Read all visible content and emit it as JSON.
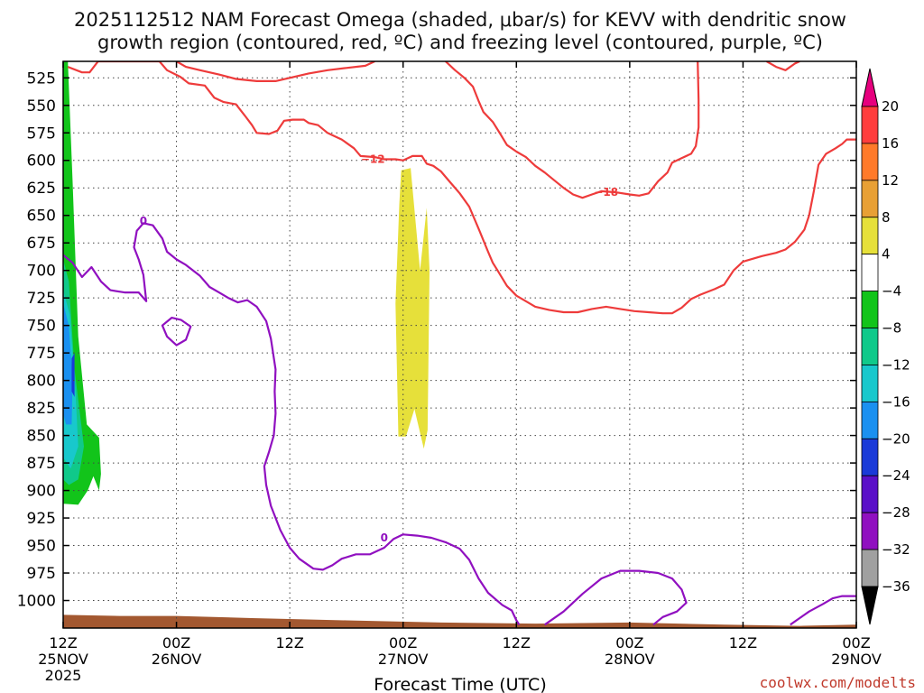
{
  "chart_data": {
    "type": "contour",
    "title_line1": "2025112512 NAM Forecast Omega (shaded, μbar/s) for KEVV with dendritic snow",
    "title_line2": "growth region (contoured, red, ºC) and freezing level (contoured, purple, ºC)",
    "xlabel": "Forecast Time (UTC)",
    "credit": "coolwx.com/modelts",
    "x_range_hours": [
      0,
      84
    ],
    "x_ticks": [
      {
        "hour": 0,
        "label": "12Z",
        "date": "25NOV",
        "year": "2025"
      },
      {
        "hour": 12,
        "label": "00Z",
        "date": "26NOV",
        "year": ""
      },
      {
        "hour": 24,
        "label": "12Z",
        "date": "",
        "year": ""
      },
      {
        "hour": 36,
        "label": "00Z",
        "date": "27NOV",
        "year": ""
      },
      {
        "hour": 48,
        "label": "12Z",
        "date": "",
        "year": ""
      },
      {
        "hour": 60,
        "label": "00Z",
        "date": "28NOV",
        "year": ""
      },
      {
        "hour": 72,
        "label": "12Z",
        "date": "",
        "year": ""
      },
      {
        "hour": 84,
        "label": "00Z",
        "date": "29NOV",
        "year": ""
      }
    ],
    "y_range_hpa": [
      1025,
      510
    ],
    "y_ticks": [
      525,
      550,
      575,
      600,
      625,
      650,
      675,
      700,
      725,
      750,
      775,
      800,
      825,
      850,
      875,
      900,
      925,
      950,
      975,
      1000
    ],
    "colorbar": {
      "labels": [
        "20",
        "16",
        "12",
        "8",
        "4",
        "−4",
        "−8",
        "−12",
        "−16",
        "−20",
        "−24",
        "−28",
        "−32",
        "−36"
      ],
      "colors": [
        "#ff3d3d",
        "#ff7a2a",
        "#e8a035",
        "#e6e03a",
        "#ffffff",
        "#12c41a",
        "#10c98a",
        "#18c8cc",
        "#1a90f0",
        "#1a3ad8",
        "#5a10c8",
        "#9010c0",
        "#a0a0a0"
      ],
      "top_cap_color": "#e6007e",
      "bottom_cap_color": "#000000"
    },
    "omega_regions": [
      {
        "name": "yellow-upward-band",
        "value_range": "4 to 8",
        "color": "#e6e03a",
        "points": [
          [
            35.8,
            609
          ],
          [
            36.8,
            607
          ],
          [
            37.8,
            700
          ],
          [
            38.5,
            643
          ],
          [
            38.8,
            700
          ],
          [
            38.6,
            845
          ],
          [
            38.2,
            862
          ],
          [
            37.2,
            826
          ],
          [
            36.3,
            851
          ],
          [
            35.5,
            851
          ],
          [
            35.2,
            730
          ],
          [
            35.6,
            640
          ]
        ]
      },
      {
        "name": "green-lowlevel-region",
        "value_range": "-4 to -8",
        "color": "#12c41a",
        "points": [
          [
            0,
            510
          ],
          [
            0.5,
            510
          ],
          [
            1.0,
            620
          ],
          [
            1.6,
            760
          ],
          [
            2.5,
            840
          ],
          [
            3.8,
            852
          ],
          [
            4.0,
            885
          ],
          [
            3.8,
            900
          ],
          [
            3.2,
            887
          ],
          [
            2.6,
            900
          ],
          [
            1.6,
            913
          ],
          [
            0,
            912
          ]
        ]
      },
      {
        "name": "teal-core",
        "value_range": "-8 to -12",
        "color": "#10c98a",
        "points": [
          [
            0,
            690
          ],
          [
            0.6,
            710
          ],
          [
            1.2,
            790
          ],
          [
            2.2,
            860
          ],
          [
            1.6,
            890
          ],
          [
            0.6,
            895
          ],
          [
            0,
            890
          ]
        ]
      },
      {
        "name": "cyan-core",
        "value_range": "-12 to -16",
        "color": "#18c8cc",
        "points": [
          [
            0,
            718
          ],
          [
            0.7,
            740
          ],
          [
            1.3,
            810
          ],
          [
            1.6,
            860
          ],
          [
            0.8,
            880
          ],
          [
            0,
            870
          ]
        ]
      },
      {
        "name": "blue-core",
        "value_range": "-16 to -20",
        "color": "#1a90f0",
        "points": [
          [
            0,
            730
          ],
          [
            0.6,
            750
          ],
          [
            1.0,
            800
          ],
          [
            0.9,
            840
          ],
          [
            0.3,
            840
          ],
          [
            0,
            830
          ]
        ]
      },
      {
        "name": "deep-blue-core",
        "value_range": "-20 to -24",
        "color": "#1a3ad8",
        "points": [
          [
            0.9,
            780
          ],
          [
            1.2,
            775
          ],
          [
            1.2,
            815
          ],
          [
            0.9,
            810
          ]
        ]
      }
    ],
    "terrain": {
      "color": "#a35830",
      "top_hpa": [
        [
          0,
          1013
        ],
        [
          6,
          1014
        ],
        [
          12,
          1014
        ],
        [
          20,
          1016
        ],
        [
          30,
          1018
        ],
        [
          40,
          1020
        ],
        [
          50,
          1021
        ],
        [
          60,
          1020
        ],
        [
          70,
          1022
        ],
        [
          78,
          1023
        ],
        [
          84,
          1022
        ]
      ]
    },
    "contour_minus12": {
      "value": "-12",
      "color": "#ee3b3b",
      "label": "−12",
      "label_at": [
        32.8,
        599
      ],
      "points": [
        [
          0.5,
          515
        ],
        [
          2.0,
          520
        ],
        [
          2.8,
          520
        ],
        [
          3.7,
          510
        ],
        [
          10.2,
          510
        ],
        [
          11.0,
          518
        ],
        [
          12.4,
          524
        ],
        [
          13.3,
          530
        ],
        [
          15.0,
          532
        ],
        [
          16.0,
          543
        ],
        [
          17.0,
          547
        ],
        [
          18.3,
          549
        ],
        [
          19.3,
          560
        ],
        [
          20.0,
          568
        ],
        [
          20.5,
          575
        ],
        [
          21.8,
          576
        ],
        [
          22.7,
          573
        ],
        [
          23.4,
          564
        ],
        [
          24.3,
          563
        ],
        [
          25.5,
          563
        ],
        [
          26.0,
          566
        ],
        [
          27.0,
          568
        ],
        [
          28.0,
          575
        ],
        [
          28.5,
          577
        ],
        [
          29.5,
          581
        ],
        [
          30.8,
          589
        ],
        [
          31.5,
          596
        ],
        [
          33.0,
          597
        ],
        [
          34.0,
          599
        ],
        [
          35.2,
          599
        ],
        [
          36.0,
          600
        ],
        [
          37.0,
          596
        ],
        [
          38.0,
          596
        ],
        [
          38.5,
          603
        ],
        [
          39.2,
          605
        ],
        [
          40.0,
          610
        ],
        [
          41.0,
          620
        ],
        [
          42.0,
          630
        ],
        [
          43.0,
          642
        ],
        [
          44.0,
          662
        ],
        [
          45.0,
          683
        ],
        [
          45.5,
          693
        ],
        [
          46.0,
          700
        ],
        [
          47.0,
          714
        ],
        [
          48.0,
          723
        ],
        [
          49.0,
          728
        ],
        [
          50.0,
          733
        ],
        [
          51.5,
          736
        ],
        [
          53.0,
          738
        ],
        [
          54.5,
          738
        ],
        [
          56.0,
          735
        ],
        [
          57.5,
          733
        ],
        [
          59.0,
          735
        ],
        [
          60.5,
          737
        ],
        [
          62.0,
          738
        ],
        [
          63.5,
          739
        ],
        [
          64.5,
          739
        ],
        [
          65.5,
          734
        ],
        [
          66.5,
          726
        ],
        [
          67.5,
          722
        ],
        [
          69.0,
          717
        ],
        [
          70.0,
          713
        ],
        [
          71.0,
          700
        ],
        [
          72.0,
          692
        ],
        [
          74.0,
          687
        ],
        [
          75.5,
          684
        ],
        [
          76.5,
          681
        ],
        [
          77.5,
          674
        ],
        [
          78.5,
          663
        ],
        [
          79.0,
          650
        ],
        [
          79.5,
          628
        ],
        [
          80.0,
          604
        ],
        [
          80.8,
          594
        ],
        [
          81.8,
          589
        ],
        [
          82.5,
          585
        ],
        [
          83.0,
          581
        ],
        [
          84.0,
          581
        ]
      ]
    },
    "contour_minus18": {
      "value": "-18",
      "color": "#ee3b3b",
      "label": "−18",
      "label_at": [
        57.5,
        629
      ],
      "points": [
        [
          12.0,
          510
        ],
        [
          13.0,
          515
        ],
        [
          14.5,
          518
        ],
        [
          16.5,
          522
        ],
        [
          18.3,
          526
        ],
        [
          20.5,
          528
        ],
        [
          22.5,
          528
        ],
        [
          24.0,
          525
        ],
        [
          26.0,
          521
        ],
        [
          28.0,
          518
        ],
        [
          30.0,
          516
        ],
        [
          32.0,
          514
        ],
        [
          33.0,
          510
        ]
      ]
    },
    "contour_minus18_b": {
      "color": "#ee3b3b",
      "points": [
        [
          40.5,
          510
        ],
        [
          41.5,
          518
        ],
        [
          42.5,
          525
        ],
        [
          43.4,
          533
        ],
        [
          44.0,
          546
        ],
        [
          44.5,
          556
        ],
        [
          45.5,
          565
        ],
        [
          46.3,
          576
        ],
        [
          47.0,
          586
        ],
        [
          48.0,
          592
        ],
        [
          49.0,
          597
        ],
        [
          50.0,
          605
        ],
        [
          51.0,
          611
        ],
        [
          52.0,
          618
        ],
        [
          53.0,
          625
        ],
        [
          54.0,
          631
        ],
        [
          55.0,
          634
        ],
        [
          56.0,
          631
        ],
        [
          57.0,
          628
        ],
        [
          58.5,
          629
        ],
        [
          60.0,
          631
        ],
        [
          61.0,
          632
        ],
        [
          62.0,
          630
        ],
        [
          63.0,
          619
        ],
        [
          64.0,
          611
        ],
        [
          64.5,
          602
        ],
        [
          65.5,
          598
        ],
        [
          66.5,
          594
        ],
        [
          67.0,
          587
        ],
        [
          67.3,
          570
        ],
        [
          67.3,
          545
        ],
        [
          67.2,
          510
        ]
      ]
    },
    "contour_minus18_c": {
      "color": "#ee3b3b",
      "points": [
        [
          74.5,
          510
        ],
        [
          75.5,
          515
        ],
        [
          76.5,
          518
        ],
        [
          77.5,
          512
        ],
        [
          78,
          510
        ]
      ]
    },
    "freezing_level_main": {
      "value": "0",
      "color": "#9010c0",
      "label": "0",
      "label_at": [
        8.5,
        655
      ],
      "points": [
        [
          0,
          686
        ],
        [
          1.0,
          693
        ],
        [
          2.0,
          706
        ],
        [
          3.0,
          697
        ],
        [
          4.0,
          710
        ],
        [
          5.0,
          718
        ],
        [
          6.5,
          720
        ],
        [
          8.0,
          720
        ],
        [
          8.8,
          728
        ],
        [
          8.5,
          704
        ],
        [
          8.0,
          690
        ],
        [
          7.5,
          679
        ],
        [
          7.8,
          664
        ],
        [
          8.5,
          657
        ],
        [
          9.5,
          659
        ],
        [
          10.5,
          671
        ],
        [
          11.0,
          683
        ],
        [
          12.0,
          690
        ],
        [
          13.0,
          695
        ],
        [
          14.5,
          705
        ],
        [
          15.5,
          715
        ],
        [
          16.5,
          720
        ],
        [
          17.5,
          725
        ],
        [
          18.5,
          729
        ],
        [
          19.5,
          727
        ],
        [
          20.5,
          733
        ],
        [
          21.5,
          746
        ],
        [
          22.0,
          762
        ],
        [
          22.5,
          790
        ],
        [
          22.4,
          810
        ],
        [
          22.5,
          830
        ],
        [
          22.3,
          850
        ],
        [
          21.8,
          865
        ],
        [
          21.3,
          878
        ],
        [
          21.5,
          895
        ],
        [
          22.0,
          914
        ],
        [
          23.0,
          936
        ],
        [
          24.0,
          952
        ],
        [
          25.0,
          962
        ],
        [
          26.5,
          971
        ],
        [
          27.5,
          972
        ],
        [
          28.5,
          968
        ],
        [
          29.5,
          962
        ],
        [
          31.0,
          958
        ],
        [
          32.5,
          958
        ],
        [
          34.0,
          952
        ],
        [
          35.0,
          944
        ],
        [
          36.0,
          940
        ],
        [
          37.5,
          941
        ],
        [
          39.0,
          943
        ],
        [
          40.5,
          947
        ],
        [
          42.0,
          953
        ],
        [
          43.0,
          963
        ],
        [
          44.0,
          980
        ],
        [
          45.0,
          993
        ],
        [
          46.5,
          1004
        ],
        [
          47.5,
          1009
        ],
        [
          48.0,
          1018
        ],
        [
          48.3,
          1022
        ]
      ]
    },
    "freezing_level_loop1": {
      "color": "#9010c0",
      "points": [
        [
          10.5,
          750
        ],
        [
          11.5,
          743
        ],
        [
          12.5,
          745
        ],
        [
          13.5,
          751
        ],
        [
          13.0,
          763
        ],
        [
          12.0,
          768
        ],
        [
          11.0,
          760
        ]
      ]
    },
    "freezing_level_loop2": {
      "color": "#9010c0",
      "points": [
        [
          51.0,
          1022
        ],
        [
          53.0,
          1010
        ],
        [
          55.0,
          994
        ],
        [
          57.0,
          980
        ],
        [
          59.0,
          973
        ],
        [
          61.0,
          973
        ],
        [
          63.0,
          975
        ],
        [
          64.5,
          980
        ],
        [
          65.5,
          990
        ],
        [
          66.0,
          1002
        ],
        [
          65.0,
          1010
        ],
        [
          63.5,
          1015
        ],
        [
          62.5,
          1022
        ]
      ]
    },
    "freezing_level_right": {
      "color": "#9010c0",
      "points": [
        [
          77.0,
          1022
        ],
        [
          78.0,
          1016
        ],
        [
          79.0,
          1010
        ],
        [
          80.5,
          1003
        ],
        [
          81.5,
          998
        ],
        [
          82.5,
          996
        ],
        [
          84.0,
          996
        ]
      ]
    }
  }
}
